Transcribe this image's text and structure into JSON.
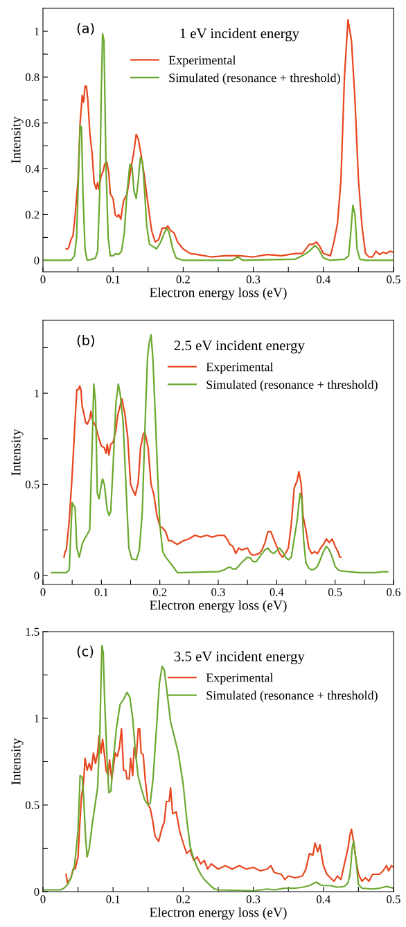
{
  "chart_data": [
    {
      "type": "line",
      "title": "1 eV incident energy",
      "annotations": [
        "(a)"
      ],
      "xlabel": "Electron energy loss (eV)",
      "ylabel": "Intensity",
      "legend": "top",
      "grid": false,
      "xlim": [
        0,
        0.5
      ],
      "xticks": [
        0,
        {
          "value": 0.05,
          "label": null
        },
        0.1,
        {
          "value": 0.15,
          "label": null
        },
        0.2,
        {
          "value": 0.25,
          "label": null
        },
        0.3,
        {
          "value": 0.35,
          "label": null
        },
        0.4,
        {
          "value": 0.45,
          "label": null
        },
        0.5
      ],
      "ylim": [
        -0.05,
        1.1
      ],
      "yticks": [
        0,
        {
          "value": 0.1,
          "label": null
        },
        0.2,
        {
          "value": 0.3,
          "label": null
        },
        0.4,
        {
          "value": 0.5,
          "label": null
        },
        0.6,
        {
          "value": 0.7,
          "label": null
        },
        0.8,
        {
          "value": 0.9,
          "label": null
        },
        1
      ],
      "series": [
        {
          "name": "Experimental",
          "color": "#e8461e",
          "x": [
            0.033,
            0.036,
            0.04,
            0.043,
            0.046,
            0.05,
            0.053,
            0.056,
            0.058,
            0.06,
            0.062,
            0.064,
            0.067,
            0.07,
            0.073,
            0.076,
            0.078,
            0.08,
            0.083,
            0.086,
            0.088,
            0.091,
            0.094,
            0.096,
            0.1,
            0.103,
            0.106,
            0.108,
            0.111,
            0.115,
            0.12,
            0.125,
            0.13,
            0.133,
            0.136,
            0.14,
            0.145,
            0.15,
            0.155,
            0.16,
            0.165,
            0.17,
            0.175,
            0.178,
            0.182,
            0.187,
            0.192,
            0.2,
            0.21,
            0.22,
            0.24,
            0.26,
            0.28,
            0.3,
            0.32,
            0.34,
            0.36,
            0.37,
            0.38,
            0.385,
            0.39,
            0.395,
            0.4,
            0.41,
            0.415,
            0.42,
            0.425,
            0.43,
            0.435,
            0.44,
            0.445,
            0.45,
            0.455,
            0.46,
            0.465,
            0.47,
            0.475,
            0.48,
            0.485,
            0.49,
            0.495,
            0.5
          ],
          "values": [
            0.05,
            0.05,
            0.09,
            0.11,
            0.2,
            0.35,
            0.6,
            0.72,
            0.69,
            0.76,
            0.76,
            0.7,
            0.55,
            0.47,
            0.34,
            0.31,
            0.34,
            0.31,
            0.37,
            0.39,
            0.42,
            0.43,
            0.38,
            0.29,
            0.27,
            0.2,
            0.19,
            0.2,
            0.18,
            0.26,
            0.29,
            0.39,
            0.48,
            0.55,
            0.53,
            0.46,
            0.36,
            0.24,
            0.13,
            0.08,
            0.09,
            0.14,
            0.14,
            0.15,
            0.13,
            0.12,
            0.08,
            0.05,
            0.03,
            0.025,
            0.015,
            0.02,
            0.02,
            0.015,
            0.025,
            0.02,
            0.03,
            0.03,
            0.07,
            0.07,
            0.08,
            0.06,
            0.03,
            0.02,
            0.08,
            0.16,
            0.35,
            0.8,
            1.05,
            0.96,
            0.7,
            0.35,
            0.15,
            0.03,
            0.015,
            0.015,
            0.04,
            0.025,
            0.035,
            0.03,
            0.04,
            0.035
          ]
        },
        {
          "name": "Simulated (resonance + threshold)",
          "color": "#6aa82e",
          "x": [
            0,
            0.04,
            0.045,
            0.048,
            0.051,
            0.053,
            0.055,
            0.057,
            0.06,
            0.063,
            0.07,
            0.075,
            0.078,
            0.081,
            0.083,
            0.085,
            0.087,
            0.09,
            0.093,
            0.096,
            0.1,
            0.104,
            0.108,
            0.112,
            0.116,
            0.12,
            0.124,
            0.127,
            0.13,
            0.133,
            0.136,
            0.139,
            0.142,
            0.145,
            0.148,
            0.152,
            0.157,
            0.162,
            0.168,
            0.173,
            0.177,
            0.18,
            0.185,
            0.19,
            0.2,
            0.27,
            0.278,
            0.285,
            0.36,
            0.37,
            0.38,
            0.388,
            0.393,
            0.4,
            0.41,
            0.43,
            0.436,
            0.439,
            0.442,
            0.445,
            0.448,
            0.452,
            0.46,
            0.5
          ],
          "values": [
            0,
            0,
            0.02,
            0.1,
            0.4,
            0.59,
            0.58,
            0.3,
            0.05,
            0,
            0.005,
            0.01,
            0.04,
            0.3,
            0.7,
            0.99,
            0.96,
            0.4,
            0.1,
            0.02,
            0.02,
            0.03,
            0.025,
            0.04,
            0.12,
            0.3,
            0.42,
            0.41,
            0.3,
            0.27,
            0.35,
            0.45,
            0.43,
            0.3,
            0.15,
            0.07,
            0.06,
            0.05,
            0.08,
            0.12,
            0.14,
            0.12,
            0.05,
            0.01,
            0,
            0,
            0.015,
            0,
            0.005,
            0.02,
            0.04,
            0.065,
            0.05,
            0.01,
            0,
            0.005,
            0.02,
            0.12,
            0.24,
            0.2,
            0.05,
            0.005,
            0,
            0
          ]
        }
      ]
    },
    {
      "type": "line",
      "title": "2.5 eV incident energy",
      "annotations": [
        "(b)"
      ],
      "xlabel": "Electron energy loss (eV)",
      "ylabel": "Intensity",
      "legend": "top right",
      "grid": false,
      "xlim": [
        0,
        0.6
      ],
      "xticks": [
        0,
        {
          "value": 0.05,
          "label": null
        },
        0.1,
        {
          "value": 0.15,
          "label": null
        },
        0.2,
        {
          "value": 0.25,
          "label": null
        },
        0.3,
        {
          "value": 0.35,
          "label": null
        },
        0.4,
        {
          "value": 0.45,
          "label": null
        },
        0.5,
        {
          "value": 0.55,
          "label": null
        },
        0.6
      ],
      "ylim": [
        -0.05,
        1.4
      ],
      "yticks": [
        0,
        {
          "value": 0.25,
          "label": null
        },
        0.5,
        {
          "value": 0.75,
          "label": null
        },
        1,
        {
          "value": 1.25,
          "label": null
        }
      ],
      "series": [
        {
          "name": "Experimental",
          "color": "#e8461e",
          "x": [
            0.036,
            0.038,
            0.04,
            0.045,
            0.05,
            0.055,
            0.058,
            0.061,
            0.063,
            0.065,
            0.067,
            0.07,
            0.073,
            0.076,
            0.08,
            0.082,
            0.085,
            0.09,
            0.095,
            0.1,
            0.105,
            0.108,
            0.11,
            0.113,
            0.116,
            0.12,
            0.125,
            0.128,
            0.132,
            0.135,
            0.14,
            0.145,
            0.15,
            0.155,
            0.158,
            0.163,
            0.167,
            0.172,
            0.175,
            0.18,
            0.185,
            0.19,
            0.195,
            0.2,
            0.205,
            0.21,
            0.215,
            0.22,
            0.23,
            0.24,
            0.25,
            0.26,
            0.27,
            0.28,
            0.29,
            0.3,
            0.31,
            0.315,
            0.32,
            0.325,
            0.33,
            0.335,
            0.34,
            0.35,
            0.355,
            0.36,
            0.37,
            0.375,
            0.38,
            0.385,
            0.39,
            0.395,
            0.4,
            0.405,
            0.41,
            0.415,
            0.42,
            0.425,
            0.43,
            0.435,
            0.438,
            0.442,
            0.445,
            0.45,
            0.455,
            0.46,
            0.465,
            0.47,
            0.475,
            0.48,
            0.485,
            0.49,
            0.495,
            0.5,
            0.505,
            0.508,
            0.51
          ],
          "values": [
            0.1,
            0.13,
            0.14,
            0.3,
            0.55,
            0.85,
            1.02,
            1.02,
            1.04,
            1.02,
            0.93,
            0.89,
            0.84,
            0.83,
            0.86,
            0.9,
            0.85,
            0.82,
            0.76,
            0.71,
            0.7,
            0.67,
            0.72,
            0.66,
            0.72,
            0.73,
            0.8,
            0.88,
            0.93,
            0.97,
            0.89,
            0.76,
            0.5,
            0.46,
            0.44,
            0.51,
            0.7,
            0.78,
            0.78,
            0.7,
            0.5,
            0.44,
            0.33,
            0.27,
            0.26,
            0.24,
            0.19,
            0.19,
            0.17,
            0.19,
            0.2,
            0.22,
            0.21,
            0.22,
            0.21,
            0.22,
            0.22,
            0.2,
            0.17,
            0.16,
            0.12,
            0.15,
            0.14,
            0.15,
            0.12,
            0.11,
            0.12,
            0.14,
            0.18,
            0.24,
            0.24,
            0.2,
            0.16,
            0.12,
            0.1,
            0.12,
            0.15,
            0.28,
            0.48,
            0.52,
            0.57,
            0.5,
            0.33,
            0.25,
            0.15,
            0.12,
            0.13,
            0.12,
            0.15,
            0.17,
            0.2,
            0.18,
            0.2,
            0.16,
            0.13,
            0.1,
            0.1
          ]
        },
        {
          "name": "Simulated (resonance + threshold)",
          "color": "#6aa82e",
          "x": [
            0.015,
            0.04,
            0.045,
            0.05,
            0.055,
            0.058,
            0.062,
            0.068,
            0.075,
            0.08,
            0.085,
            0.087,
            0.09,
            0.093,
            0.096,
            0.1,
            0.102,
            0.105,
            0.11,
            0.113,
            0.116,
            0.12,
            0.125,
            0.129,
            0.132,
            0.137,
            0.142,
            0.147,
            0.152,
            0.16,
            0.165,
            0.17,
            0.175,
            0.179,
            0.182,
            0.185,
            0.188,
            0.192,
            0.197,
            0.2,
            0.205,
            0.21,
            0.22,
            0.23,
            0.24,
            0.29,
            0.3,
            0.31,
            0.315,
            0.32,
            0.325,
            0.33,
            0.34,
            0.35,
            0.355,
            0.36,
            0.365,
            0.375,
            0.38,
            0.385,
            0.39,
            0.395,
            0.405,
            0.41,
            0.415,
            0.42,
            0.425,
            0.43,
            0.435,
            0.44,
            0.443,
            0.446,
            0.45,
            0.455,
            0.46,
            0.465,
            0.47,
            0.475,
            0.48,
            0.485,
            0.49,
            0.495,
            0.5,
            0.505,
            0.51,
            0.54,
            0.57,
            0.58,
            0.59
          ],
          "values": [
            0.015,
            0.015,
            0.03,
            0.4,
            0.37,
            0.15,
            0.1,
            0.18,
            0.22,
            0.25,
            0.8,
            1.05,
            0.95,
            0.45,
            0.42,
            0.5,
            0.53,
            0.5,
            0.36,
            0.33,
            0.35,
            0.6,
            0.95,
            1.05,
            1.0,
            0.85,
            0.5,
            0.15,
            0.09,
            0.085,
            0.14,
            0.35,
            0.85,
            1.2,
            1.28,
            1.32,
            1.2,
            0.9,
            0.5,
            0.28,
            0.13,
            0.1,
            0.06,
            0.015,
            0.015,
            0.02,
            0.02,
            0.03,
            0.04,
            0.045,
            0.035,
            0.035,
            0.07,
            0.1,
            0.095,
            0.075,
            0.075,
            0.12,
            0.14,
            0.15,
            0.13,
            0.12,
            0.15,
            0.13,
            0.1,
            0.085,
            0.1,
            0.2,
            0.3,
            0.45,
            0.42,
            0.2,
            0.07,
            0.04,
            0.03,
            0.035,
            0.05,
            0.09,
            0.13,
            0.16,
            0.14,
            0.1,
            0.05,
            0.03,
            0.025,
            0.015,
            0.015,
            0.02,
            0.02
          ]
        }
      ]
    },
    {
      "type": "line",
      "title": "3.5 eV incident energy",
      "annotations": [
        "(c)"
      ],
      "xlabel": "Electron energy loss (eV)",
      "ylabel": "Intensity",
      "legend": "top right",
      "grid": false,
      "xlim": [
        0,
        0.5
      ],
      "xticks": [
        0,
        {
          "value": 0.05,
          "label": null
        },
        0.1,
        {
          "value": 0.15,
          "label": null
        },
        0.2,
        {
          "value": 0.25,
          "label": null
        },
        0.3,
        {
          "value": 0.35,
          "label": null
        },
        0.4,
        {
          "value": 0.45,
          "label": null
        },
        0.5
      ],
      "ylim": [
        0,
        1.5
      ],
      "yticks": [
        0,
        {
          "value": 0.25,
          "label": null
        },
        0.5,
        {
          "value": 0.75,
          "label": null
        },
        1,
        {
          "value": 1.25,
          "label": null
        },
        1.5
      ],
      "series": [
        {
          "name": "Experimental",
          "color": "#e8461e",
          "x": [
            0.033,
            0.035,
            0.04,
            0.043,
            0.046,
            0.05,
            0.052,
            0.055,
            0.058,
            0.06,
            0.063,
            0.066,
            0.069,
            0.072,
            0.075,
            0.078,
            0.08,
            0.083,
            0.085,
            0.088,
            0.09,
            0.093,
            0.095,
            0.098,
            0.1,
            0.103,
            0.106,
            0.109,
            0.112,
            0.115,
            0.118,
            0.12,
            0.123,
            0.125,
            0.128,
            0.13,
            0.133,
            0.136,
            0.138,
            0.14,
            0.143,
            0.146,
            0.15,
            0.153,
            0.156,
            0.16,
            0.165,
            0.17,
            0.173,
            0.176,
            0.18,
            0.182,
            0.185,
            0.19,
            0.195,
            0.2,
            0.205,
            0.21,
            0.215,
            0.22,
            0.225,
            0.23,
            0.235,
            0.24,
            0.25,
            0.26,
            0.27,
            0.28,
            0.29,
            0.3,
            0.31,
            0.32,
            0.325,
            0.33,
            0.34,
            0.345,
            0.35,
            0.36,
            0.37,
            0.375,
            0.38,
            0.385,
            0.388,
            0.392,
            0.395,
            0.4,
            0.405,
            0.41,
            0.415,
            0.42,
            0.425,
            0.43,
            0.435,
            0.438,
            0.44,
            0.443,
            0.447,
            0.45,
            0.455,
            0.46,
            0.465,
            0.47,
            0.48,
            0.485,
            0.49,
            0.493,
            0.497,
            0.5
          ],
          "values": [
            0.1,
            0.05,
            0.08,
            0.13,
            0.13,
            0.2,
            0.35,
            0.55,
            0.63,
            0.77,
            0.7,
            0.74,
            0.7,
            0.8,
            0.74,
            0.8,
            0.9,
            0.8,
            0.88,
            0.78,
            0.7,
            0.67,
            0.76,
            0.65,
            0.7,
            0.8,
            0.78,
            0.83,
            0.94,
            0.7,
            0.7,
            0.65,
            0.65,
            0.77,
            0.67,
            0.83,
            0.77,
            0.94,
            0.94,
            0.8,
            0.79,
            0.64,
            0.5,
            0.48,
            0.42,
            0.32,
            0.29,
            0.37,
            0.4,
            0.52,
            0.52,
            0.6,
            0.45,
            0.46,
            0.35,
            0.28,
            0.22,
            0.24,
            0.18,
            0.2,
            0.16,
            0.18,
            0.13,
            0.16,
            0.13,
            0.15,
            0.13,
            0.15,
            0.13,
            0.14,
            0.12,
            0.13,
            0.15,
            0.11,
            0.1,
            0.07,
            0.09,
            0.08,
            0.09,
            0.13,
            0.22,
            0.21,
            0.28,
            0.23,
            0.27,
            0.15,
            0.1,
            0.08,
            0.06,
            0.09,
            0.07,
            0.16,
            0.25,
            0.33,
            0.36,
            0.29,
            0.17,
            0.1,
            0.06,
            0.08,
            0.06,
            0.1,
            0.1,
            0.12,
            0.15,
            0.12,
            0.15,
            0.14
          ]
        },
        {
          "name": "Simulated (resonance + threshold)",
          "color": "#6aa82e",
          "x": [
            0,
            0.025,
            0.03,
            0.035,
            0.04,
            0.045,
            0.05,
            0.053,
            0.056,
            0.058,
            0.061,
            0.063,
            0.066,
            0.07,
            0.075,
            0.078,
            0.081,
            0.084,
            0.086,
            0.088,
            0.091,
            0.094,
            0.097,
            0.1,
            0.105,
            0.11,
            0.115,
            0.12,
            0.124,
            0.128,
            0.132,
            0.136,
            0.14,
            0.145,
            0.15,
            0.153,
            0.157,
            0.162,
            0.166,
            0.17,
            0.173,
            0.177,
            0.182,
            0.187,
            0.193,
            0.2,
            0.205,
            0.21,
            0.215,
            0.22,
            0.225,
            0.23,
            0.235,
            0.24,
            0.245,
            0.25,
            0.3,
            0.31,
            0.32,
            0.33,
            0.345,
            0.36,
            0.37,
            0.38,
            0.385,
            0.39,
            0.395,
            0.4,
            0.41,
            0.42,
            0.43,
            0.435,
            0.438,
            0.441,
            0.443,
            0.446,
            0.45,
            0.455,
            0.47,
            0.48,
            0.49,
            0.5
          ],
          "values": [
            0.01,
            0.01,
            0.02,
            0.04,
            0.08,
            0.15,
            0.35,
            0.67,
            0.66,
            0.55,
            0.3,
            0.2,
            0.25,
            0.38,
            0.52,
            0.6,
            0.9,
            1.42,
            1.38,
            1.1,
            0.8,
            0.57,
            0.58,
            0.75,
            0.95,
            1.08,
            1.11,
            1.15,
            1.12,
            1.0,
            0.8,
            0.66,
            0.6,
            0.53,
            0.5,
            0.51,
            0.65,
            0.95,
            1.2,
            1.3,
            1.28,
            1.15,
            0.98,
            0.9,
            0.8,
            0.62,
            0.42,
            0.26,
            0.19,
            0.14,
            0.1,
            0.07,
            0.05,
            0.03,
            0.015,
            0.01,
            0.005,
            0.01,
            0.015,
            0.01,
            0.02,
            0.02,
            0.025,
            0.035,
            0.045,
            0.055,
            0.04,
            0.035,
            0.035,
            0.025,
            0.03,
            0.05,
            0.1,
            0.25,
            0.29,
            0.2,
            0.04,
            0.02,
            0.015,
            0.02,
            0.03,
            0.02
          ]
        }
      ]
    }
  ]
}
